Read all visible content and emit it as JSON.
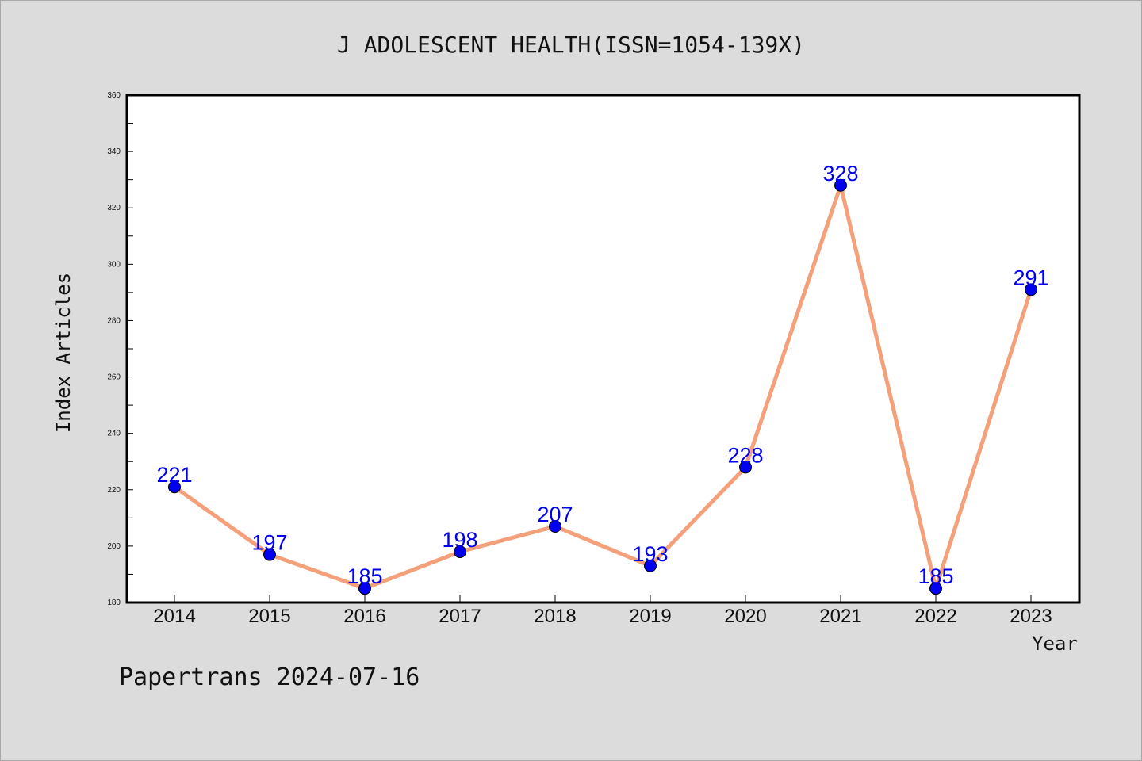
{
  "chart_data": {
    "type": "line",
    "title": "J ADOLESCENT HEALTH(ISSN=1054-139X)",
    "xlabel": "Year",
    "ylabel": "Index Articles",
    "categories": [
      "2014",
      "2015",
      "2016",
      "2017",
      "2018",
      "2019",
      "2020",
      "2021",
      "2022",
      "2023"
    ],
    "values": [
      221,
      197,
      185,
      198,
      207,
      193,
      228,
      328,
      185,
      291
    ],
    "ylim": [
      180,
      360
    ],
    "yticks": [
      180,
      200,
      220,
      240,
      260,
      280,
      300,
      320,
      340,
      360
    ],
    "grid": false,
    "line_color": "#f4a07a",
    "marker_color": "#0000ee",
    "label_color": "#0000ee"
  },
  "footer": {
    "text": "Papertrans 2024-07-16"
  }
}
